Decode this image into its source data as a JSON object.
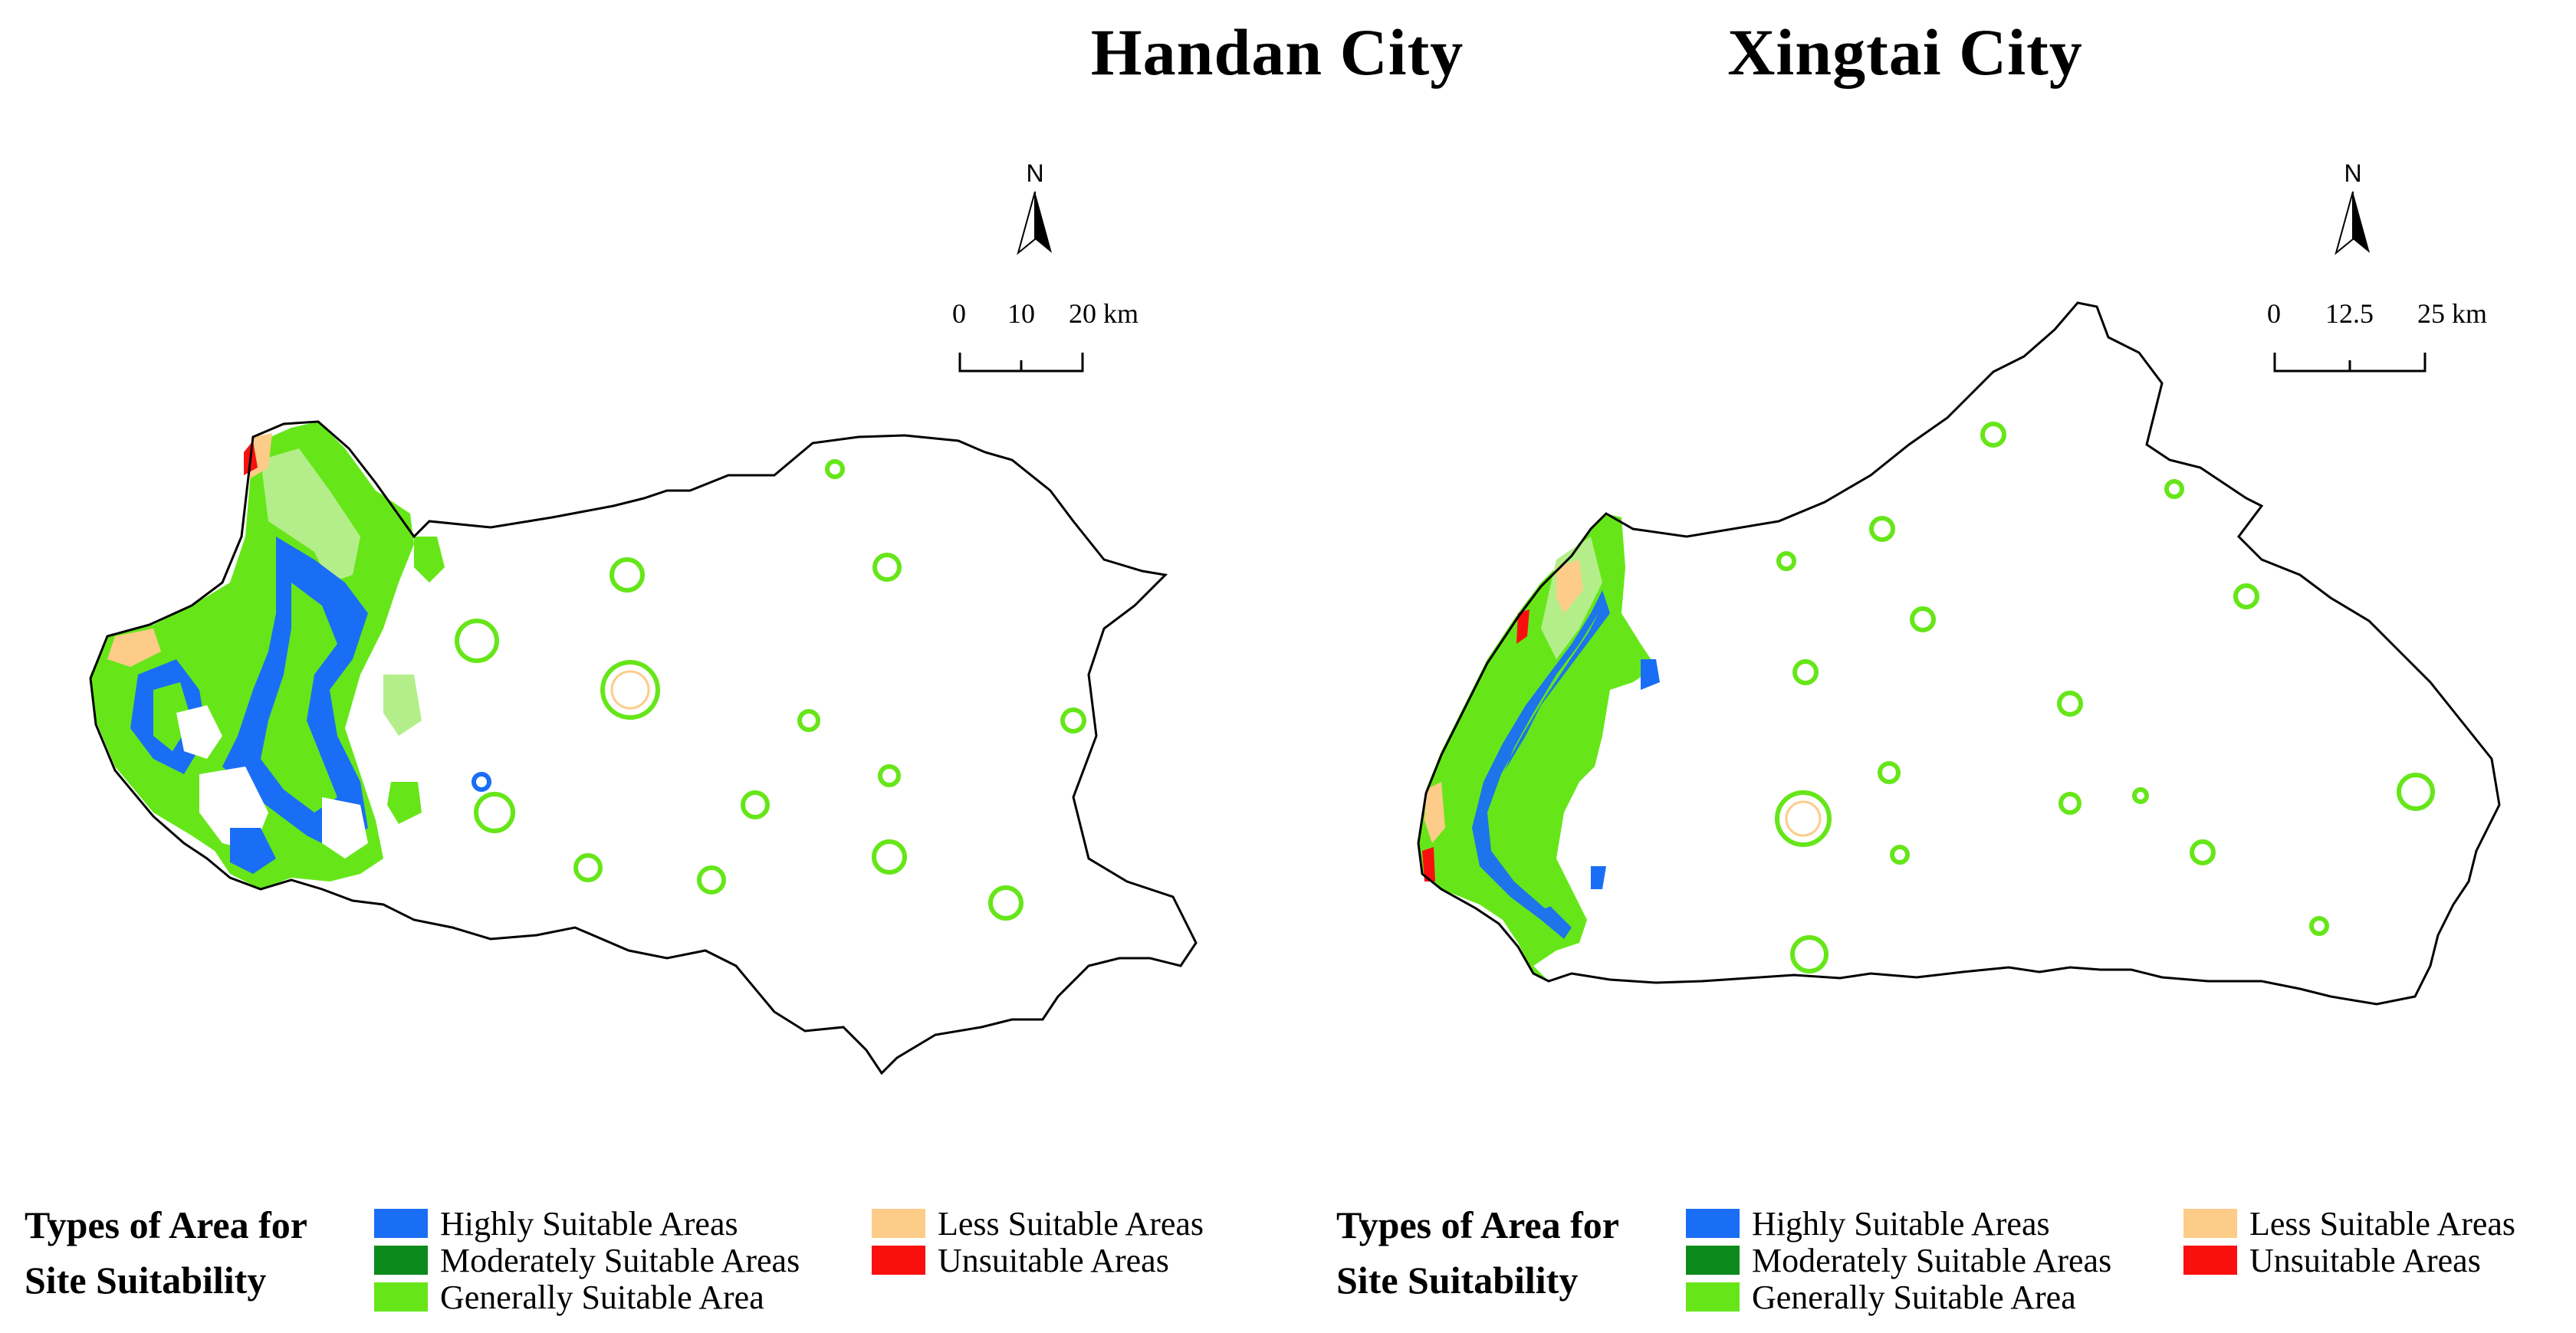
{
  "maps": [
    {
      "title": "Handan City",
      "north_label": "N",
      "scale": {
        "ticks": [
          "0",
          "10",
          "20 km"
        ]
      },
      "legend": {
        "title_line1": "Types of Area for",
        "title_line2": "Site Suitability",
        "items": [
          {
            "label": "Highly Suitable Areas",
            "color": "#1a6ef5"
          },
          {
            "label": "Moderately Suitable Areas",
            "color": "#0b8a1b"
          },
          {
            "label": "Generally Suitable Area",
            "color": "#66e619"
          },
          {
            "label": "Less Suitable Areas",
            "color": "#fccc88"
          },
          {
            "label": "Unsuitable Areas",
            "color": "#fa0f0f"
          }
        ]
      }
    },
    {
      "title": "Xingtai City",
      "north_label": "N",
      "scale": {
        "ticks": [
          "0",
          "12.5",
          "25 km"
        ]
      },
      "legend": {
        "title_line1": "Types of Area for",
        "title_line2": "Site Suitability",
        "items": [
          {
            "label": "Highly Suitable Areas",
            "color": "#1a6ef5"
          },
          {
            "label": "Moderately Suitable Areas",
            "color": "#0b8a1b"
          },
          {
            "label": "Generally Suitable Area",
            "color": "#66e619"
          },
          {
            "label": "Less Suitable Areas",
            "color": "#fccc88"
          },
          {
            "label": "Unsuitable Areas",
            "color": "#fa0f0f"
          }
        ]
      }
    }
  ]
}
